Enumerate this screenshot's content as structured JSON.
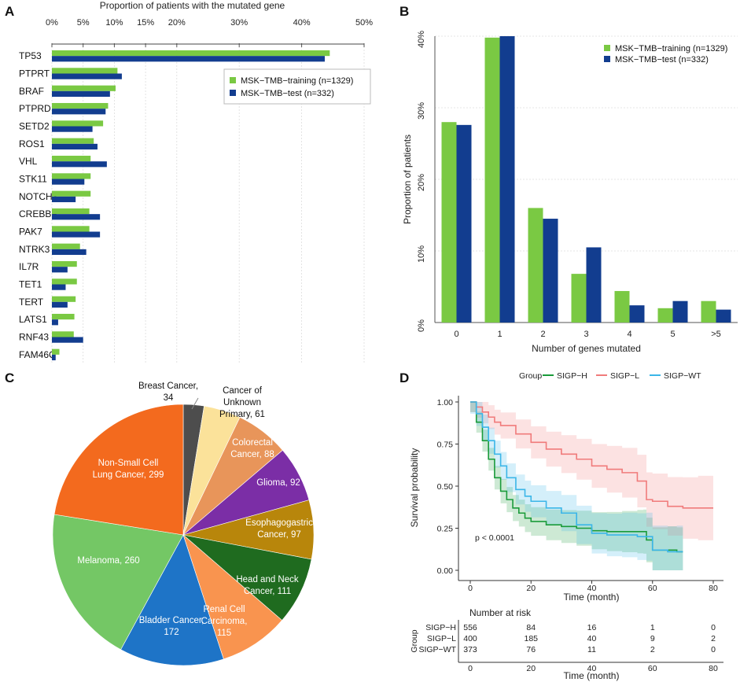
{
  "panels": {
    "A": "A",
    "B": "B",
    "C": "C",
    "D": "D"
  },
  "colors": {
    "training": "#7ac943",
    "test": "#123d8f",
    "sigp_h": "#1a9b3a",
    "sigp_l": "#f07b7b",
    "sigp_wt": "#3bb6e8"
  },
  "chart_data": [
    {
      "type": "bar",
      "orientation": "horizontal",
      "title": "Proportion of patients with the mutated gene",
      "xlim": [
        0,
        50
      ],
      "xticks": [
        "0%",
        "5%",
        "10%",
        "15%",
        "20%",
        "30%",
        "40%",
        "50%"
      ],
      "categories": [
        "TP53",
        "PTPRT",
        "BRAF",
        "PTPRD",
        "SETD2",
        "ROS1",
        "VHL",
        "STK11",
        "NOTCH3",
        "CREBBP",
        "PAK7",
        "NTRK3",
        "IL7R",
        "TET1",
        "TERT",
        "LATS1",
        "RNF43",
        "FAM46C"
      ],
      "series": [
        {
          "name": "MSK−TMB−training (n=1329)",
          "values": [
            44.5,
            10.5,
            10.2,
            9.0,
            8.2,
            6.7,
            6.2,
            6.2,
            6.2,
            6.0,
            6.0,
            4.5,
            4.0,
            4.0,
            3.8,
            3.6,
            3.5,
            1.2
          ]
        },
        {
          "name": "MSK−TMB−test (n=332)",
          "values": [
            43.7,
            11.2,
            9.3,
            8.6,
            6.5,
            7.3,
            8.8,
            5.2,
            3.8,
            7.7,
            7.7,
            5.5,
            2.5,
            2.2,
            2.5,
            1.0,
            5.0,
            0.6
          ]
        }
      ]
    },
    {
      "type": "bar",
      "xlabel": "Number of genes mutated",
      "ylabel": "Proportion of patients",
      "ylim": [
        0,
        40
      ],
      "yticks": [
        "0%",
        "10%",
        "20%",
        "30%",
        "40%"
      ],
      "categories": [
        "0",
        "1",
        "2",
        "3",
        "4",
        "5",
        ">5"
      ],
      "series": [
        {
          "name": "MSK−TMB−training (n=1329)",
          "values": [
            28.0,
            39.8,
            16.0,
            6.8,
            4.4,
            2.0,
            3.0
          ]
        },
        {
          "name": "MSK−TMB−test (n=332)",
          "values": [
            27.6,
            40.0,
            14.5,
            10.5,
            2.4,
            3.0,
            1.8
          ]
        }
      ]
    },
    {
      "type": "pie",
      "slices": [
        {
          "label": "Breast Cancer,",
          "label2": "34",
          "value": 34,
          "color": "#4d4d4d"
        },
        {
          "label": "Cancer of",
          "label2": "Unknown",
          "label3": "Primary, 61",
          "value": 61,
          "color": "#fbe29a"
        },
        {
          "label": "Colorectal",
          "label2": "Cancer, 88",
          "value": 88,
          "color": "#e8955a"
        },
        {
          "label": "Glioma, 92",
          "value": 92,
          "color": "#7b2ea6"
        },
        {
          "label": "Esophagogastric",
          "label2": "Cancer, 97",
          "value": 97,
          "color": "#b8860b"
        },
        {
          "label": "Head and Neck",
          "label2": "Cancer, 111",
          "value": 111,
          "color": "#1f6b1f"
        },
        {
          "label": "Renal Cell",
          "label2": "Carcinoma,",
          "label3": "115",
          "value": 115,
          "color": "#f9944f"
        },
        {
          "label": "Bladder Cancer,",
          "label2": "172",
          "value": 172,
          "color": "#1e74c7"
        },
        {
          "label": "Melanoma, 260",
          "value": 260,
          "color": "#74c765"
        },
        {
          "label": "Non-Small Cell",
          "label2": "Lung Cancer, 299",
          "value": 299,
          "color": "#f36a1e"
        }
      ]
    },
    {
      "type": "line",
      "subtype": "kaplan-meier",
      "legend_title": "Group",
      "xlabel": "Time (month)",
      "ylabel": "Survival probability",
      "xlim": [
        0,
        80
      ],
      "ylim": [
        0,
        1
      ],
      "xticks": [
        "0",
        "20",
        "40",
        "60",
        "80"
      ],
      "yticks": [
        "0.00",
        "0.25",
        "0.50",
        "0.75",
        "1.00"
      ],
      "annotation": "p < 0.0001",
      "series": [
        {
          "name": "SIGP−H",
          "x": [
            0,
            2,
            4,
            6,
            8,
            10,
            12,
            14,
            16,
            18,
            20,
            25,
            30,
            35,
            40,
            45,
            50,
            55,
            57,
            58,
            60,
            65,
            68,
            70
          ],
          "y": [
            1.0,
            0.88,
            0.77,
            0.66,
            0.55,
            0.47,
            0.42,
            0.37,
            0.34,
            0.31,
            0.29,
            0.27,
            0.26,
            0.25,
            0.235,
            0.23,
            0.23,
            0.23,
            0.23,
            0.18,
            0.12,
            0.12,
            0.11,
            0.11
          ]
        },
        {
          "name": "SIGP−L",
          "x": [
            0,
            2,
            4,
            6,
            8,
            10,
            15,
            20,
            25,
            30,
            35,
            40,
            45,
            50,
            55,
            58,
            60,
            65,
            70,
            75,
            80
          ],
          "y": [
            1.0,
            0.97,
            0.94,
            0.91,
            0.88,
            0.86,
            0.81,
            0.76,
            0.72,
            0.69,
            0.66,
            0.62,
            0.6,
            0.58,
            0.53,
            0.42,
            0.41,
            0.38,
            0.37,
            0.37,
            0.37
          ]
        },
        {
          "name": "SIGP−WT",
          "x": [
            0,
            2,
            4,
            6,
            8,
            10,
            12,
            15,
            18,
            20,
            25,
            30,
            35,
            40,
            45,
            50,
            55,
            58,
            60,
            65,
            68,
            70
          ],
          "y": [
            1.0,
            0.93,
            0.85,
            0.77,
            0.69,
            0.62,
            0.55,
            0.48,
            0.44,
            0.41,
            0.37,
            0.34,
            0.27,
            0.22,
            0.21,
            0.21,
            0.2,
            0.2,
            0.12,
            0.11,
            0.11,
            0.11
          ]
        }
      ],
      "risk_table": {
        "title": "Number at risk",
        "label": "Group",
        "times": [
          0,
          20,
          40,
          60,
          80
        ],
        "rows": [
          {
            "name": "SIGP−H",
            "counts": [
              "556",
              "84",
              "16",
              "1",
              "0"
            ]
          },
          {
            "name": "SIGP−L",
            "counts": [
              "400",
              "185",
              "40",
              "9",
              "2"
            ]
          },
          {
            "name": "SIGP−WT",
            "counts": [
              "373",
              "76",
              "11",
              "2",
              "0"
            ]
          }
        ]
      }
    }
  ]
}
